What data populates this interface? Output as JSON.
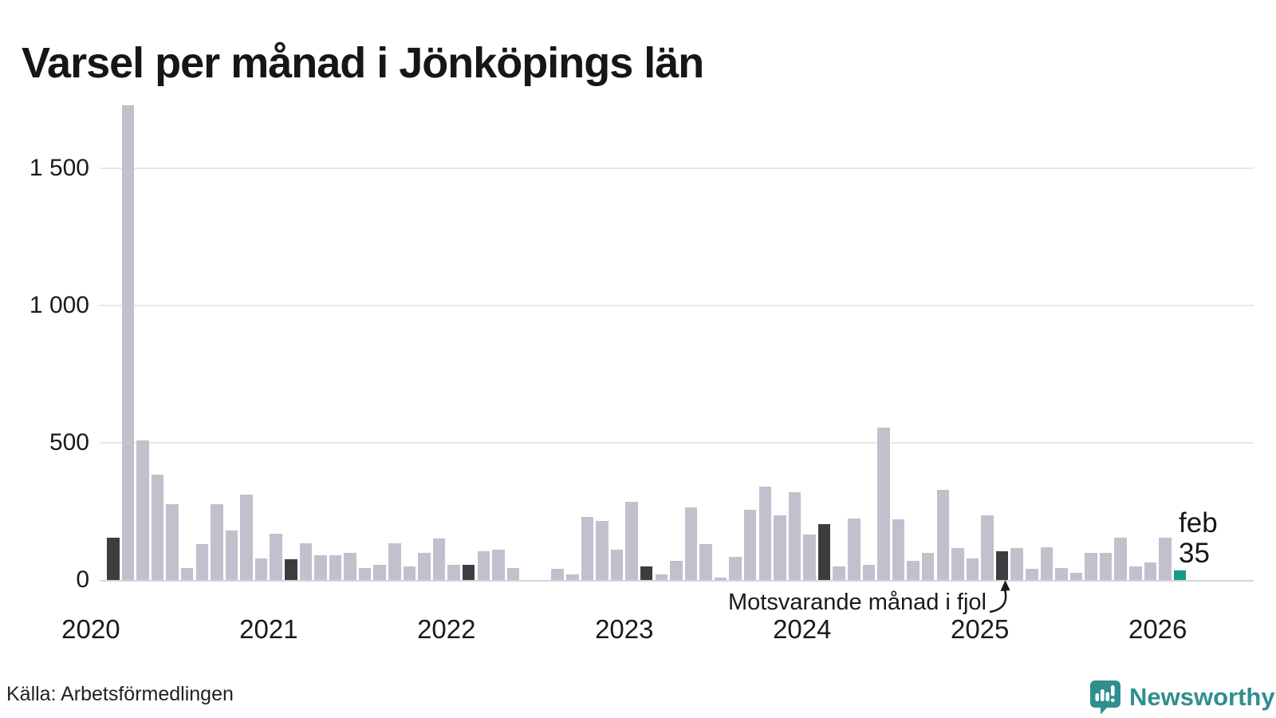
{
  "title": "Varsel per månad i Jönköpings län",
  "annotation": {
    "label": "Motsvarande månad i fjol"
  },
  "last_point_label": {
    "line1": "feb",
    "line2": "35"
  },
  "footer": {
    "source": "Källa: Arbetsförmedlingen",
    "brand": "Newsworthy"
  },
  "colors": {
    "bar": "#c2c0cc",
    "bar_dark": "#3d3d40",
    "bar_teal": "#17998c",
    "grid": "#e7e7ec",
    "baseline": "#d4d4db",
    "text": "#1a1a1a",
    "brand_teal": "#2e8f8e"
  },
  "chart_data": {
    "type": "bar",
    "title": "Varsel per månad i Jönköpings län",
    "xlabel": "",
    "ylabel": "",
    "ylim": [
      0,
      1767
    ],
    "yticks": [
      0,
      500,
      1000,
      1500
    ],
    "ytick_labels": [
      "0",
      "500",
      "1 000",
      "1 500"
    ],
    "year_labels": [
      "2020",
      "2021",
      "2022",
      "2023",
      "2024",
      "2025",
      "2026"
    ],
    "grid": "horizontal",
    "legend": "none",
    "highlight_note": "Motsvarande månad i fjol",
    "latest": {
      "month": "2026-02",
      "label": "feb",
      "value": 35
    },
    "points": [
      {
        "month": "2020-02",
        "value": 155,
        "type": "dark"
      },
      {
        "month": "2020-03",
        "value": 1730,
        "type": "normal"
      },
      {
        "month": "2020-04",
        "value": 510,
        "type": "normal"
      },
      {
        "month": "2020-05",
        "value": 385,
        "type": "normal"
      },
      {
        "month": "2020-06",
        "value": 275,
        "type": "normal"
      },
      {
        "month": "2020-07",
        "value": 45,
        "type": "normal"
      },
      {
        "month": "2020-08",
        "value": 130,
        "type": "normal"
      },
      {
        "month": "2020-09",
        "value": 275,
        "type": "normal"
      },
      {
        "month": "2020-10",
        "value": 180,
        "type": "normal"
      },
      {
        "month": "2020-11",
        "value": 310,
        "type": "normal"
      },
      {
        "month": "2020-12",
        "value": 80,
        "type": "normal"
      },
      {
        "month": "2021-01",
        "value": 170,
        "type": "normal"
      },
      {
        "month": "2021-02",
        "value": 75,
        "type": "dark"
      },
      {
        "month": "2021-03",
        "value": 135,
        "type": "normal"
      },
      {
        "month": "2021-04",
        "value": 90,
        "type": "normal"
      },
      {
        "month": "2021-05",
        "value": 90,
        "type": "normal"
      },
      {
        "month": "2021-06",
        "value": 100,
        "type": "normal"
      },
      {
        "month": "2021-07",
        "value": 45,
        "type": "normal"
      },
      {
        "month": "2021-08",
        "value": 55,
        "type": "normal"
      },
      {
        "month": "2021-09",
        "value": 135,
        "type": "normal"
      },
      {
        "month": "2021-10",
        "value": 50,
        "type": "normal"
      },
      {
        "month": "2021-11",
        "value": 100,
        "type": "normal"
      },
      {
        "month": "2021-12",
        "value": 150,
        "type": "normal"
      },
      {
        "month": "2022-01",
        "value": 55,
        "type": "normal"
      },
      {
        "month": "2022-02",
        "value": 55,
        "type": "dark"
      },
      {
        "month": "2022-03",
        "value": 105,
        "type": "normal"
      },
      {
        "month": "2022-04",
        "value": 110,
        "type": "normal"
      },
      {
        "month": "2022-05",
        "value": 45,
        "type": "normal"
      },
      {
        "month": "2022-06",
        "value": 0,
        "type": "normal"
      },
      {
        "month": "2022-07",
        "value": 0,
        "type": "normal"
      },
      {
        "month": "2022-08",
        "value": 40,
        "type": "normal"
      },
      {
        "month": "2022-09",
        "value": 20,
        "type": "normal"
      },
      {
        "month": "2022-10",
        "value": 230,
        "type": "normal"
      },
      {
        "month": "2022-11",
        "value": 215,
        "type": "normal"
      },
      {
        "month": "2022-12",
        "value": 110,
        "type": "normal"
      },
      {
        "month": "2023-01",
        "value": 285,
        "type": "normal"
      },
      {
        "month": "2023-02",
        "value": 50,
        "type": "dark"
      },
      {
        "month": "2023-03",
        "value": 20,
        "type": "normal"
      },
      {
        "month": "2023-04",
        "value": 70,
        "type": "normal"
      },
      {
        "month": "2023-05",
        "value": 265,
        "type": "normal"
      },
      {
        "month": "2023-06",
        "value": 130,
        "type": "normal"
      },
      {
        "month": "2023-07",
        "value": 10,
        "type": "normal"
      },
      {
        "month": "2023-08",
        "value": 85,
        "type": "normal"
      },
      {
        "month": "2023-09",
        "value": 255,
        "type": "normal"
      },
      {
        "month": "2023-10",
        "value": 340,
        "type": "normal"
      },
      {
        "month": "2023-11",
        "value": 235,
        "type": "normal"
      },
      {
        "month": "2023-12",
        "value": 320,
        "type": "normal"
      },
      {
        "month": "2024-01",
        "value": 165,
        "type": "normal"
      },
      {
        "month": "2024-02",
        "value": 205,
        "type": "dark"
      },
      {
        "month": "2024-03",
        "value": 50,
        "type": "normal"
      },
      {
        "month": "2024-04",
        "value": 225,
        "type": "normal"
      },
      {
        "month": "2024-05",
        "value": 55,
        "type": "normal"
      },
      {
        "month": "2024-06",
        "value": 555,
        "type": "normal"
      },
      {
        "month": "2024-07",
        "value": 220,
        "type": "normal"
      },
      {
        "month": "2024-08",
        "value": 70,
        "type": "normal"
      },
      {
        "month": "2024-09",
        "value": 100,
        "type": "normal"
      },
      {
        "month": "2024-10",
        "value": 330,
        "type": "normal"
      },
      {
        "month": "2024-11",
        "value": 115,
        "type": "normal"
      },
      {
        "month": "2024-12",
        "value": 80,
        "type": "normal"
      },
      {
        "month": "2025-01",
        "value": 235,
        "type": "normal"
      },
      {
        "month": "2025-02",
        "value": 105,
        "type": "dark"
      },
      {
        "month": "2025-03",
        "value": 115,
        "type": "normal"
      },
      {
        "month": "2025-04",
        "value": 40,
        "type": "normal"
      },
      {
        "month": "2025-05",
        "value": 120,
        "type": "normal"
      },
      {
        "month": "2025-06",
        "value": 45,
        "type": "normal"
      },
      {
        "month": "2025-07",
        "value": 25,
        "type": "normal"
      },
      {
        "month": "2025-08",
        "value": 100,
        "type": "normal"
      },
      {
        "month": "2025-09",
        "value": 100,
        "type": "normal"
      },
      {
        "month": "2025-10",
        "value": 155,
        "type": "normal"
      },
      {
        "month": "2025-11",
        "value": 50,
        "type": "normal"
      },
      {
        "month": "2025-12",
        "value": 65,
        "type": "normal"
      },
      {
        "month": "2026-01",
        "value": 155,
        "type": "normal"
      },
      {
        "month": "2026-02",
        "value": 35,
        "type": "teal"
      }
    ]
  }
}
